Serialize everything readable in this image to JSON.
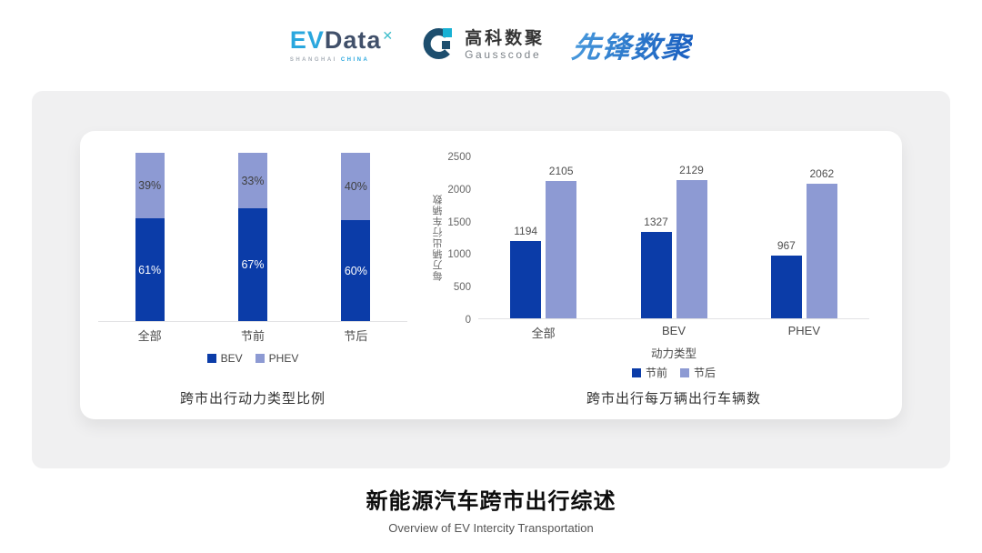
{
  "header": {
    "evdata_logo": {
      "ev": "EV",
      "data": "Data",
      "mark": "✕",
      "sub_left": "SHANGHAI",
      "sub_right": "CHINA"
    },
    "gausscode_logo": {
      "name_cn": "高科数聚",
      "name_en": "Gausscode"
    },
    "pioneer_logo": {
      "text": "先锋数聚"
    }
  },
  "colors": {
    "series_dark_blue": "#0b3ca8",
    "series_light_blue": "#8d9ad3",
    "axis_line": "#e2e2e4"
  },
  "chart_data": [
    {
      "type": "bar",
      "subtype": "stacked-100-percent",
      "title": "跨市出行动力类型比例",
      "categories": [
        "全部",
        "节前",
        "节后"
      ],
      "series": [
        {
          "name": "BEV",
          "color": "#0b3ca8",
          "values": [
            61,
            67,
            60
          ],
          "label_color": "#ffffff"
        },
        {
          "name": "PHEV",
          "color": "#8d9ad3",
          "values": [
            39,
            33,
            40
          ],
          "label_color": "#3f3f3f"
        }
      ],
      "value_suffix": "%",
      "ylim": [
        0,
        100
      ],
      "grid": false,
      "legend_position": "bottom"
    },
    {
      "type": "bar",
      "subtype": "grouped",
      "title": "跨市出行每万辆出行车辆数",
      "categories": [
        "全部",
        "BEV",
        "PHEV"
      ],
      "xlabel": "动力类型",
      "ylabel": "每万辆出行车辆数",
      "ylim": [
        0,
        2500
      ],
      "yticks": [
        0,
        500,
        1000,
        1500,
        2000,
        2500
      ],
      "series": [
        {
          "name": "节前",
          "color": "#0b3ca8",
          "values": [
            1194,
            1327,
            967
          ]
        },
        {
          "name": "节后",
          "color": "#8d9ad3",
          "values": [
            2105,
            2129,
            2062
          ]
        }
      ],
      "grid": false,
      "legend_position": "bottom"
    }
  ],
  "footer": {
    "title": "新能源汽车跨市出行综述",
    "subtitle": "Overview of EV Intercity Transportation"
  }
}
